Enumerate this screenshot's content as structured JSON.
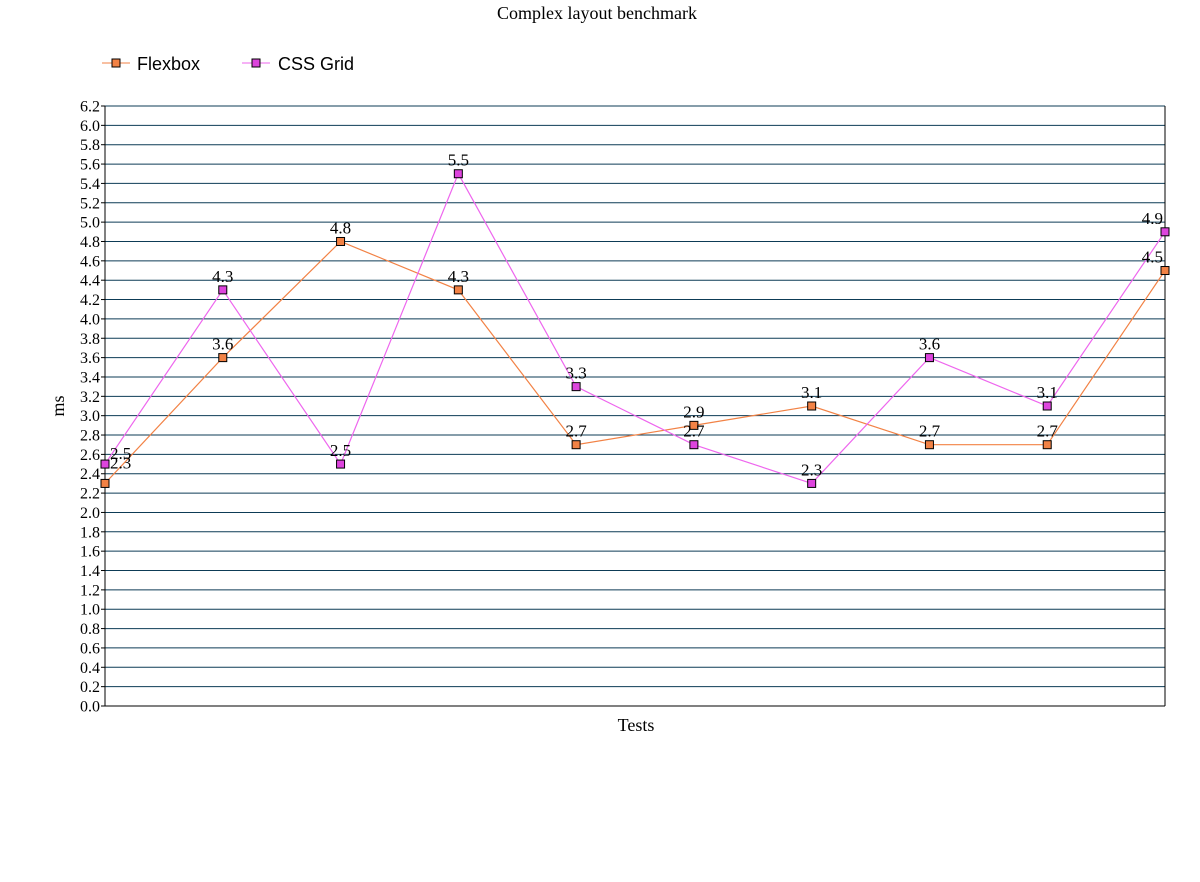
{
  "chart_data": {
    "type": "line",
    "title": "Complex layout benchmark",
    "xlabel": "Tests",
    "ylabel": "ms",
    "ylim": [
      0,
      6.2
    ],
    "ytick_step": 0.2,
    "yticks": [
      "0.0",
      "0.2",
      "0.4",
      "0.6",
      "0.8",
      "1.0",
      "1.2",
      "1.4",
      "1.6",
      "1.8",
      "2.0",
      "2.2",
      "2.4",
      "2.6",
      "2.8",
      "3.0",
      "3.2",
      "3.4",
      "3.6",
      "3.8",
      "4.0",
      "4.2",
      "4.4",
      "4.6",
      "4.8",
      "5.0",
      "5.2",
      "5.4",
      "5.6",
      "5.8",
      "6.0",
      "6.2"
    ],
    "grid": true,
    "legend_position": "top-left",
    "series": [
      {
        "name": "Flexbox",
        "color": "#f28245",
        "marker_color": "#f28245",
        "values": [
          2.3,
          3.6,
          4.8,
          4.3,
          2.7,
          2.9,
          3.1,
          2.7,
          2.7,
          4.5
        ],
        "labels": [
          "2.3",
          "3.6",
          "4.8",
          "4.3",
          "2.7",
          "2.9",
          "3.1",
          "2.7",
          "2.7",
          "4.5"
        ]
      },
      {
        "name": "CSS Grid",
        "color": "#ee66ee",
        "marker_color": "#dd44dd",
        "values": [
          2.5,
          4.3,
          2.5,
          5.5,
          3.3,
          2.7,
          2.3,
          3.6,
          3.1,
          4.9
        ],
        "labels": [
          "2.5",
          "4.3",
          "2.5",
          "5.5",
          "3.3",
          "2.7",
          "2.3",
          "3.6",
          "3.1",
          "4.9"
        ]
      }
    ]
  }
}
